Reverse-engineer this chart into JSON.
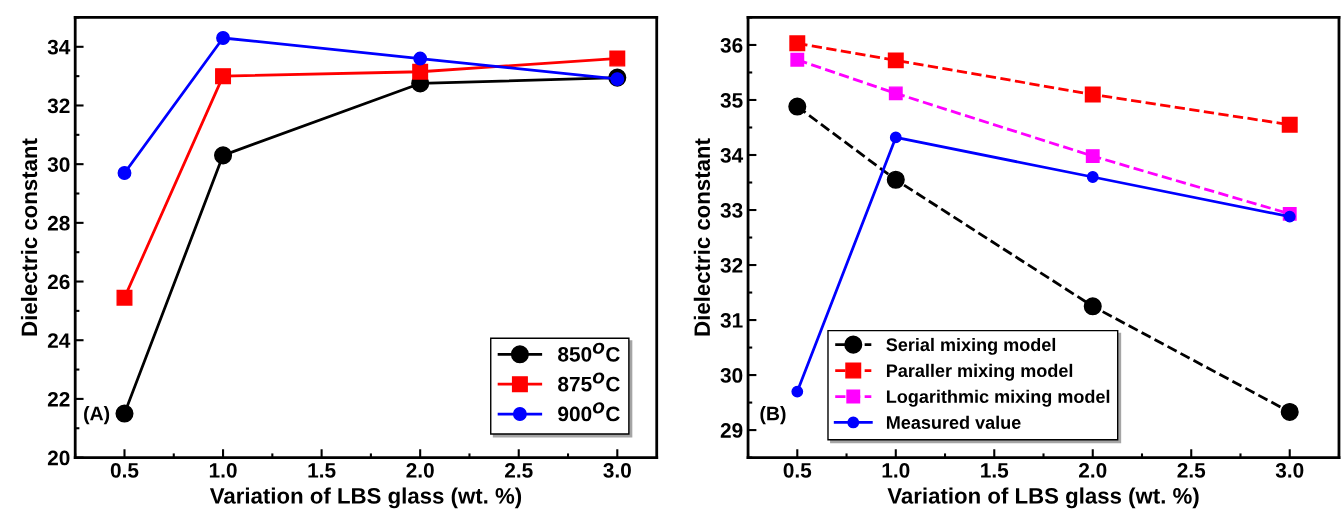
{
  "chart_data": [
    {
      "type": "line",
      "xlabel": "Variation of LBS glass (wt. %)",
      "ylabel": "Dielectric constant",
      "x": [
        0.5,
        1.0,
        2.0,
        3.0
      ],
      "xlim": [
        0.25,
        3.2
      ],
      "xticks": [
        {
          "value": 0.5,
          "label": "0.5"
        },
        {
          "value": 1.0,
          "label": "1.0"
        },
        {
          "value": 1.5,
          "label": "1.5"
        },
        {
          "value": 2.0,
          "label": "2.0"
        },
        {
          "value": 2.5,
          "label": "2.5"
        },
        {
          "value": 3.0,
          "label": "3.0"
        }
      ],
      "ylim": [
        20,
        35
      ],
      "yticks": [
        20,
        22,
        24,
        26,
        28,
        30,
        32,
        34
      ],
      "grid": false,
      "legend": "bottom right",
      "annotations": [
        "(A)"
      ],
      "series": [
        {
          "name": "850$^{O}$C",
          "color": "#000000",
          "marker": "circle",
          "line_style": "solid",
          "values": [
            21.5,
            30.3,
            32.75,
            32.95
          ]
        },
        {
          "name": "875$^{O}$C",
          "color": "#ff0000",
          "marker": "square",
          "line_style": "solid",
          "values": [
            25.45,
            33.0,
            33.15,
            33.6
          ]
        },
        {
          "name": "900$^{O}$C",
          "color": "#0000ff",
          "marker": "circle",
          "line_style": "solid",
          "values": [
            29.7,
            34.3,
            33.6,
            32.9
          ]
        }
      ]
    },
    {
      "type": "line",
      "xlabel": "Variation of LBS glass (wt. %)",
      "ylabel": "Dielectric constant",
      "x": [
        0.5,
        1.0,
        2.0,
        3.0
      ],
      "xlim": [
        0.25,
        3.25
      ],
      "xticks": [
        {
          "value": 0.5,
          "label": "0.5"
        },
        {
          "value": 1.0,
          "label": "1.0"
        },
        {
          "value": 1.5,
          "label": "1.5"
        },
        {
          "value": 2.0,
          "label": "2.0"
        },
        {
          "value": 2.5,
          "label": "2.5"
        },
        {
          "value": 3.0,
          "label": "3.0"
        }
      ],
      "ylim": [
        28.5,
        36.5
      ],
      "yticks": [
        29,
        30,
        31,
        32,
        33,
        34,
        35,
        36
      ],
      "grid": false,
      "legend": "bottom left",
      "annotations": [
        "(B)"
      ],
      "series": [
        {
          "name": "Serial mixing model",
          "color": "#000000",
          "marker": "circle",
          "line_style": "dashed",
          "values": [
            34.88,
            33.55,
            31.25,
            29.33
          ]
        },
        {
          "name": "Paraller mixing model",
          "color": "#ff0000",
          "marker": "square",
          "line_style": "dashed",
          "values": [
            36.03,
            35.72,
            35.1,
            34.55
          ]
        },
        {
          "name": "Logarithmic mixing model",
          "color": "#ff00ff",
          "marker": "square",
          "line_style": "dashed",
          "values": [
            35.73,
            35.12,
            33.98,
            32.93
          ]
        },
        {
          "name": "Measured value",
          "color": "#0000ff",
          "marker": "circle",
          "line_style": "solid",
          "values": [
            29.7,
            34.32,
            33.6,
            32.88
          ]
        }
      ]
    }
  ]
}
